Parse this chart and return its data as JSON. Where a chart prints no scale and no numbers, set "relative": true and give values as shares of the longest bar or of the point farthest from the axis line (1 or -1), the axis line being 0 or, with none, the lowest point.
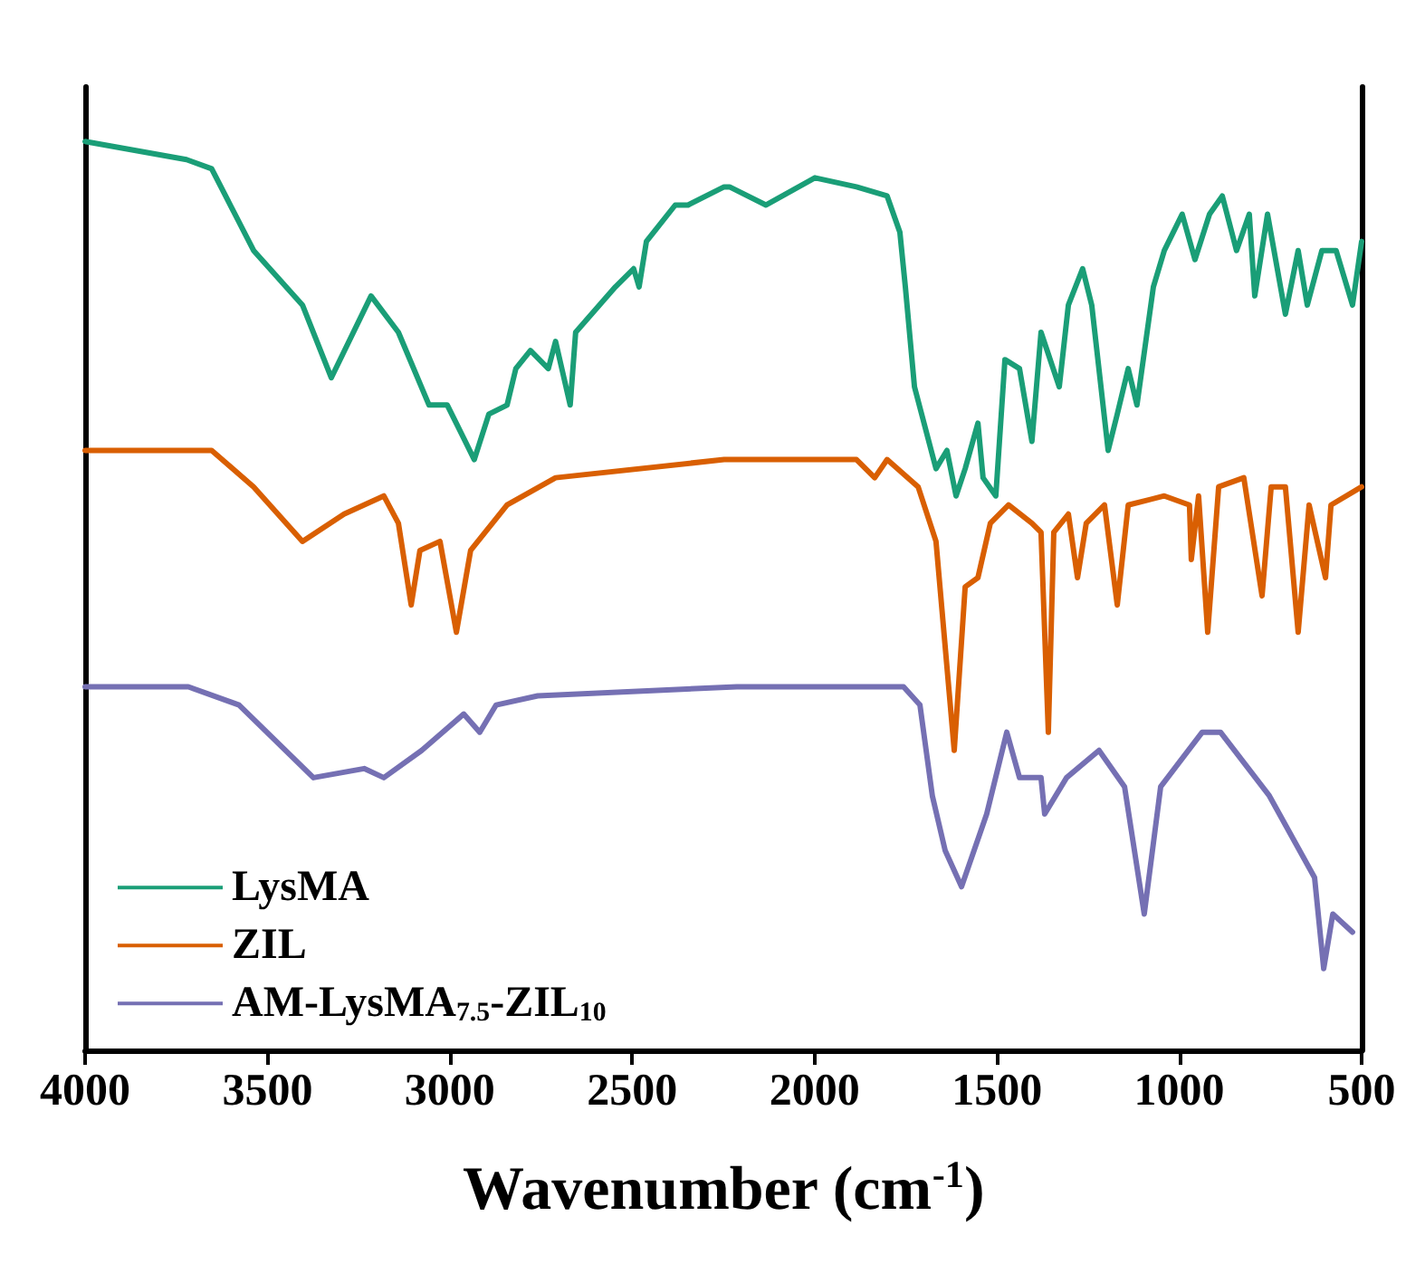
{
  "chart_data": {
    "type": "line",
    "xlabel": "Wavenumber (cm$^{-1}$)",
    "xlim": [
      4000,
      500
    ],
    "xticks": [
      4000,
      3500,
      3000,
      2500,
      2000,
      1500,
      1000,
      500
    ],
    "relative": true,
    "grid": false,
    "legend": "bottom left",
    "marker": "none",
    "line_style": "solid",
    "series": [
      {
        "name": "LysMA",
        "color": "#1a9e77",
        "x": [
          4000,
          3722,
          3653,
          3538,
          3404,
          3325,
          3216,
          3141,
          3057,
          3007,
          2933,
          2893,
          2843,
          2819,
          2779,
          2730,
          2710,
          2670,
          2655,
          2546,
          2496,
          2481,
          2461,
          2382,
          2347,
          2248,
          2233,
          2133,
          1999,
          1885,
          1801,
          1766,
          1751,
          1726,
          1667,
          1637,
          1612,
          1587,
          1552,
          1538,
          1503,
          1478,
          1438,
          1404,
          1379,
          1329,
          1304,
          1265,
          1240,
          1195,
          1170,
          1140,
          1116,
          1071,
          1041,
          992,
          957,
          917,
          882,
          843,
          808,
          793,
          758,
          709,
          674,
          649,
          609,
          570,
          525,
          500
        ],
        "values": [
          1,
          0.98,
          0.97,
          0.88,
          0.82,
          0.74,
          0.83,
          0.79,
          0.71,
          0.71,
          0.65,
          0.7,
          0.71,
          0.75,
          0.77,
          0.75,
          0.78,
          0.71,
          0.79,
          0.84,
          0.86,
          0.84,
          0.89,
          0.93,
          0.93,
          0.95,
          0.95,
          0.93,
          0.96,
          0.95,
          0.94,
          0.9,
          0.84,
          0.73,
          0.64,
          0.66,
          0.61,
          0.64,
          0.69,
          0.63,
          0.61,
          0.76,
          0.75,
          0.67,
          0.79,
          0.73,
          0.82,
          0.86,
          0.82,
          0.66,
          0.7,
          0.75,
          0.71,
          0.84,
          0.88,
          0.92,
          0.87,
          0.92,
          0.94,
          0.88,
          0.92,
          0.83,
          0.92,
          0.81,
          0.88,
          0.82,
          0.88,
          0.88,
          0.82,
          0.89
        ]
      },
      {
        "name": "ZIL",
        "color": "#d95f02",
        "x": [
          4000,
          3653,
          3538,
          3404,
          3290,
          3181,
          3141,
          3106,
          3082,
          3027,
          2982,
          2943,
          2843,
          2710,
          2248,
          1885,
          1835,
          1801,
          1716,
          1667,
          1617,
          1587,
          1552,
          1518,
          1468,
          1404,
          1379,
          1359,
          1344,
          1304,
          1279,
          1255,
          1205,
          1170,
          1140,
          1041,
          972,
          967,
          947,
          922,
          892,
          823,
          773,
          748,
          709,
          674,
          644,
          599,
          584,
          500
        ],
        "values": [
          0.66,
          0.66,
          0.62,
          0.56,
          0.59,
          0.61,
          0.58,
          0.49,
          0.55,
          0.56,
          0.46,
          0.55,
          0.6,
          0.63,
          0.65,
          0.65,
          0.63,
          0.65,
          0.62,
          0.56,
          0.33,
          0.51,
          0.52,
          0.58,
          0.6,
          0.58,
          0.57,
          0.35,
          0.57,
          0.59,
          0.52,
          0.58,
          0.6,
          0.49,
          0.6,
          0.61,
          0.6,
          0.54,
          0.61,
          0.46,
          0.62,
          0.63,
          0.5,
          0.62,
          0.62,
          0.46,
          0.6,
          0.52,
          0.6,
          0.62
        ]
      },
      {
        "name": "AM-LysMA$_{7.5}$-ZIL$_{10}$",
        "color": "#7570b3",
        "x": [
          4000,
          3717,
          3578,
          3374,
          3235,
          3181,
          3077,
          2962,
          2918,
          2873,
          2759,
          2213,
          1756,
          1711,
          1677,
          1642,
          1597,
          1528,
          1473,
          1438,
          1379,
          1369,
          1309,
          1220,
          1150,
          1096,
          1051,
          937,
          887,
          753,
          629,
          604,
          579,
          525
        ],
        "values": [
          0.4,
          0.4,
          0.38,
          0.3,
          0.31,
          0.3,
          0.33,
          0.37,
          0.35,
          0.38,
          0.39,
          0.4,
          0.4,
          0.38,
          0.28,
          0.22,
          0.18,
          0.26,
          0.35,
          0.3,
          0.3,
          0.26,
          0.3,
          0.33,
          0.29,
          0.15,
          0.29,
          0.35,
          0.35,
          0.28,
          0.19,
          0.09,
          0.15,
          0.13
        ]
      }
    ]
  }
}
